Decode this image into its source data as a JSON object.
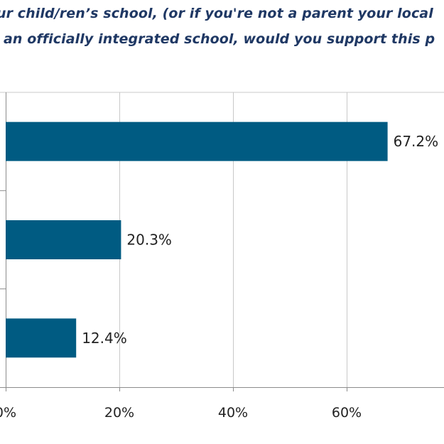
{
  "chart_data": {
    "type": "bar",
    "orientation": "horizontal",
    "title_lines": [
      "ur child/ren’s school, (or if you're not a parent your local",
      "an officially integrated school, would you support this p"
    ],
    "categories": [
      "",
      "",
      ""
    ],
    "values": [
      67.2,
      20.3,
      12.4
    ],
    "data_labels": [
      "67.2%",
      "20.3%",
      "12.4%"
    ],
    "x_ticks": [
      0,
      20,
      40,
      60
    ],
    "x_tick_labels": [
      "0%",
      "20%",
      "40%",
      "60%"
    ],
    "xlim": [
      0,
      80
    ],
    "grid": true,
    "bar_color": "#005b82",
    "grid_color": "#c8c8c8",
    "axis_color": "#8c8c8c"
  }
}
